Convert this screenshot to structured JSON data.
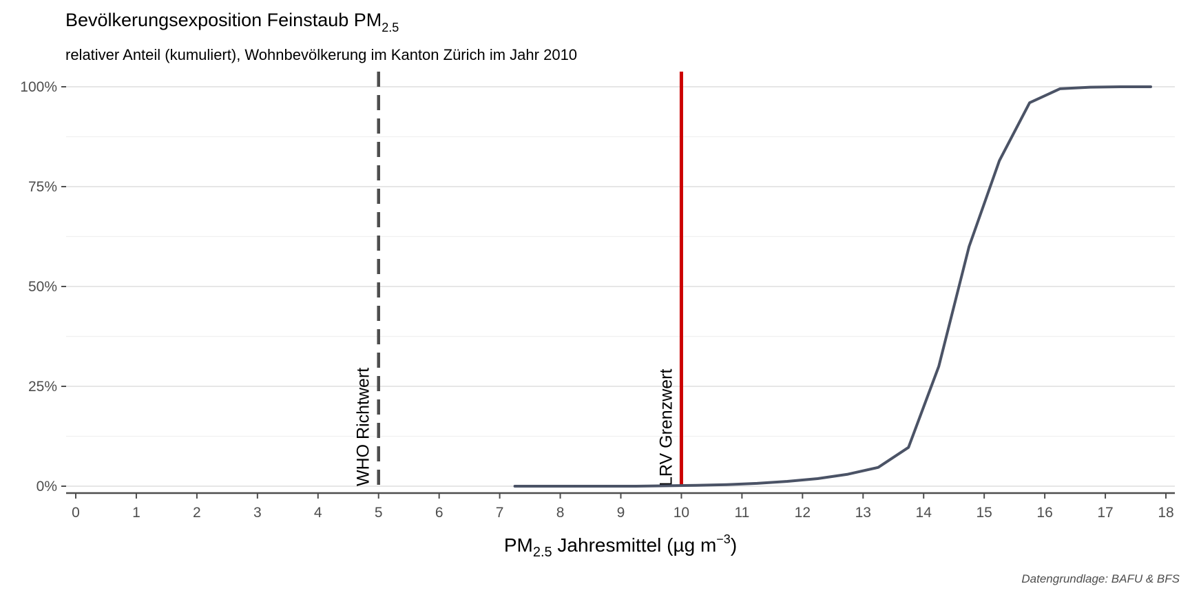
{
  "chart_data": {
    "type": "line",
    "title": "Bevölkerungsexposition Feinstaub PM",
    "title_sub": "2.5",
    "subtitle": "relativer Anteil (kumuliert), Wohnbevölkerung im Kanton Zürich im Jahr 2010",
    "xlabel_main": "PM",
    "xlabel_sub": "2.5",
    "xlabel_rest": " Jahresmittel (µg m",
    "xlabel_sup": "−3",
    "xlabel_end": ")",
    "caption": "Datengrundlage: BAFU & BFS",
    "xlim": [
      0,
      18
    ],
    "ylim": [
      0,
      1
    ],
    "x_ticks": [
      0,
      1,
      2,
      3,
      4,
      5,
      6,
      7,
      8,
      9,
      10,
      11,
      12,
      13,
      14,
      15,
      16,
      17,
      18
    ],
    "y_ticks": [
      0,
      0.25,
      0.5,
      0.75,
      1.0
    ],
    "y_tick_labels": [
      "0%",
      "25%",
      "50%",
      "75%",
      "100%"
    ],
    "grid": true,
    "series": [
      {
        "color": "#4b5366",
        "x": [
          7.25,
          7.75,
          8.25,
          8.75,
          9.25,
          9.75,
          10.25,
          10.75,
          11.25,
          11.75,
          12.25,
          12.75,
          13.25,
          13.75,
          14.25,
          14.75,
          15.25,
          15.75,
          16.25,
          16.75,
          17.25,
          17.75
        ],
        "y": [
          0.0,
          0.0,
          0.0,
          0.0,
          0.0,
          0.001,
          0.002,
          0.004,
          0.007,
          0.012,
          0.019,
          0.03,
          0.047,
          0.097,
          0.3,
          0.6,
          0.815,
          0.96,
          0.995,
          0.999,
          1.0,
          1.0
        ]
      }
    ],
    "vlines": [
      {
        "x": 5,
        "label": "WHO Richtwert",
        "style": "dashed",
        "color": "#4d4d4d"
      },
      {
        "x": 10,
        "label": "LRV Grenzwert",
        "style": "solid",
        "color": "#cc0000"
      }
    ]
  }
}
